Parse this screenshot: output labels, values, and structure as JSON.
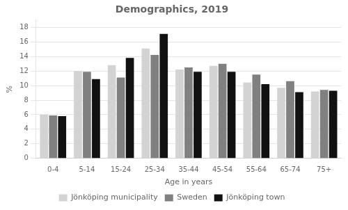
{
  "chart_data": {
    "type": "bar",
    "title": "Demographics, 2019",
    "xlabel": "Age in years",
    "ylabel": "%",
    "categories": [
      "0-4",
      "5-14",
      "15-24",
      "25-34",
      "35-44",
      "45-54",
      "55-64",
      "65-74",
      "75+"
    ],
    "series": [
      {
        "name": "Jönköping municipality",
        "color": "#d3d3d3",
        "values": [
          6.0,
          12.0,
          12.8,
          15.1,
          12.2,
          12.7,
          10.4,
          9.7,
          9.2
        ]
      },
      {
        "name": "Sweden",
        "color": "#808080",
        "values": [
          5.9,
          11.9,
          11.1,
          14.2,
          12.5,
          13.0,
          11.5,
          10.6,
          9.4
        ]
      },
      {
        "name": "Jönköping town",
        "color": "#111111",
        "values": [
          5.8,
          10.9,
          13.8,
          17.1,
          11.9,
          11.9,
          10.2,
          9.1,
          9.3
        ]
      }
    ],
    "ylim": [
      0,
      19
    ],
    "yticks": [
      0,
      2,
      4,
      6,
      8,
      10,
      12,
      14,
      16,
      18
    ],
    "grid": true,
    "legend": "bottom"
  }
}
